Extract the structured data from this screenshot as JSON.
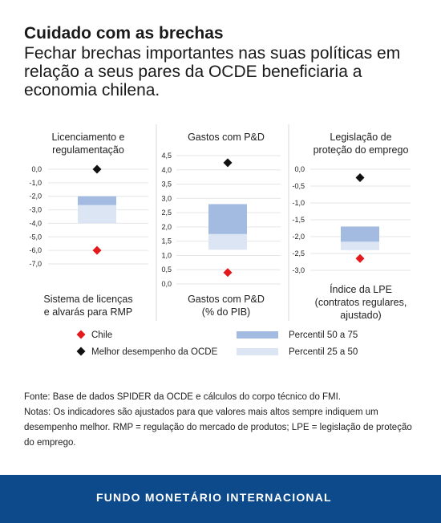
{
  "header": {
    "title": "Cuidado com as brechas",
    "subtitle": "Fechar brechas importantes nas suas políticas em relação a seus pares da OCDE beneficiaria a economia chilena."
  },
  "chart_data": [
    {
      "type": "box-range",
      "title_lines": [
        "Licenciamento e",
        "regulamentação"
      ],
      "bottom_label_lines": [
        "Sistema de licenças",
        "e alvarás para RMP"
      ],
      "y_ticks": [
        "0,0",
        "-1,0",
        "-2,0",
        "-3,0",
        "-4,0",
        "-5,0",
        "-6,0",
        "-7,0"
      ],
      "ylim": [
        -7,
        0
      ],
      "p25": -4.0,
      "p50": -2.65,
      "p75": -2.0,
      "chile": -6.0,
      "best": 0.0
    },
    {
      "type": "box-range",
      "title_lines": [
        "Gastos com P&D"
      ],
      "bottom_label_lines": [
        "Gastos com P&D",
        "(% do PIB)"
      ],
      "y_ticks": [
        "4,5",
        "4,0",
        "3,5",
        "3,0",
        "2,5",
        "2,0",
        "1,5",
        "1,0",
        "0,5",
        "0,0"
      ],
      "ylim": [
        0,
        4.5
      ],
      "p25": 1.2,
      "p50": 1.75,
      "p75": 2.8,
      "chile": 0.4,
      "best": 4.25
    },
    {
      "type": "box-range",
      "title_lines": [
        "Legislação de",
        "proteção do emprego"
      ],
      "bottom_label_lines": [
        "Índice da LPE",
        "(contratos regulares,",
        "ajustado)"
      ],
      "y_ticks": [
        "0,0",
        "-0,5",
        "-1,0",
        "-1,5",
        "-2,0",
        "-2,5",
        "-3,0"
      ],
      "ylim": [
        -3,
        0
      ],
      "p25": -2.4,
      "p50": -2.15,
      "p75": -1.7,
      "chile": -2.65,
      "best": -0.25
    }
  ],
  "legend": {
    "chile": "Chile",
    "best": "Melhor desempenho da OCDE",
    "p5075": "Percentil 50 a 75",
    "p2550": "Percentil 25 a 50"
  },
  "colors": {
    "chile": "#e3191c",
    "best": "#111111",
    "p5075": "#a3bbe0",
    "p2550": "#dbe5f4",
    "footer": "#0d4a8c"
  },
  "notes": {
    "source": "Fonte: Base de dados SPIDER da OCDE e cálculos do corpo técnico do FMI.",
    "notes": "Notas: Os indicadores são ajustados para que valores mais altos sempre indiquem um desempenho melhor. RMP = regulação do mercado de produtos; LPE = legislação de proteção do emprego."
  },
  "footer": {
    "org": "FUNDO MONETÁRIO INTERNACIONAL"
  }
}
